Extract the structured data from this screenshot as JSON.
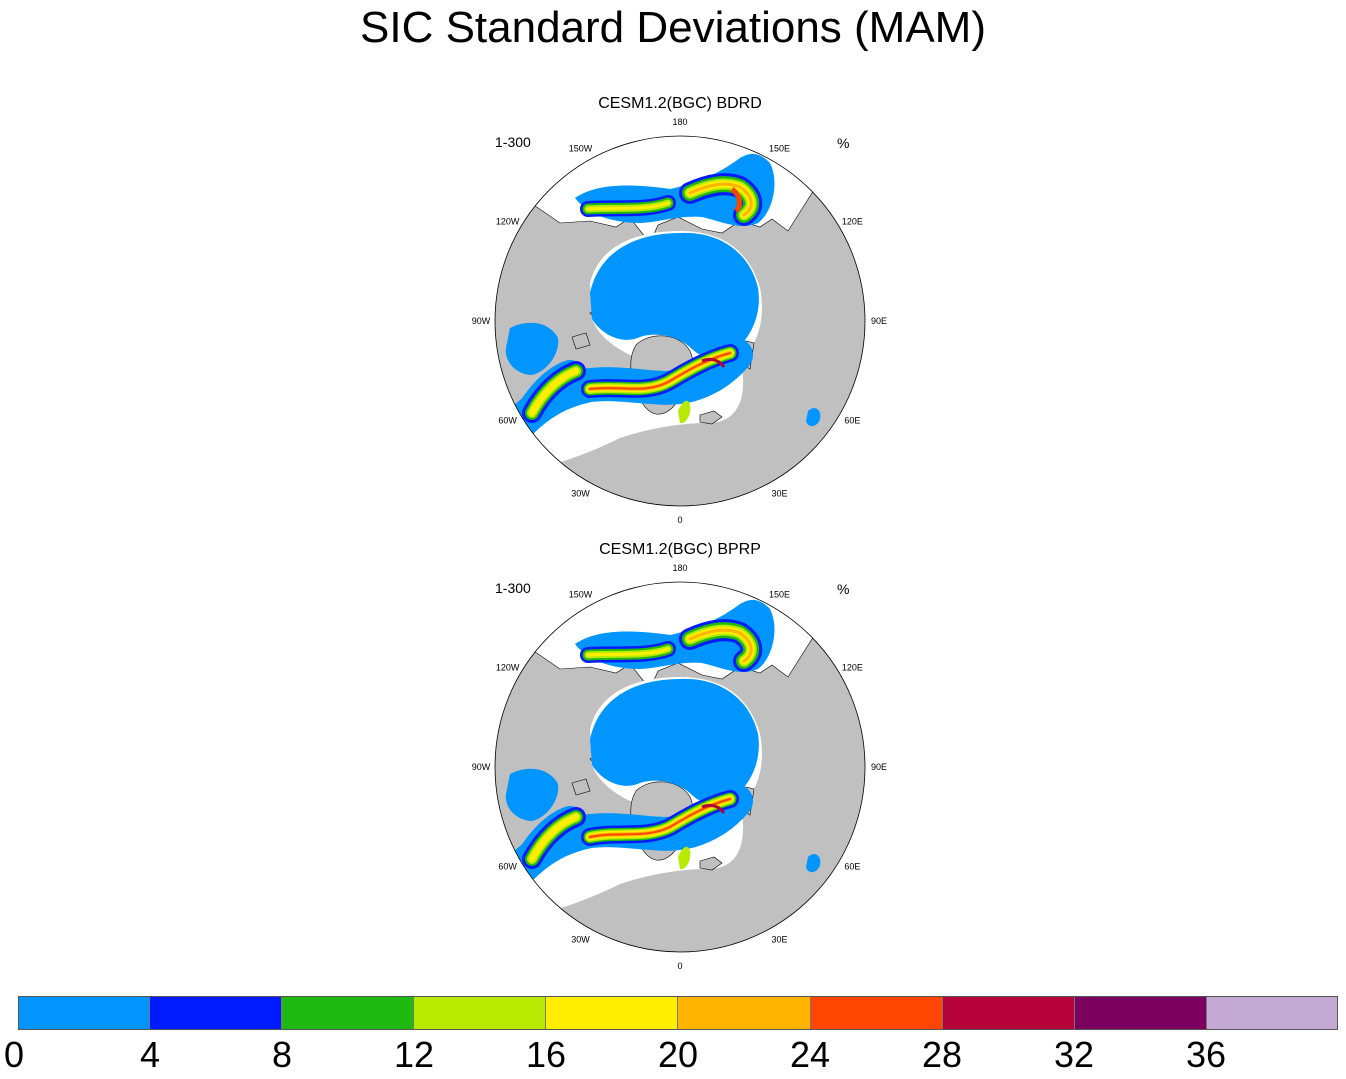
{
  "title": "SIC Standard Deviations (MAM)",
  "chart_data": {
    "type": "heatmap",
    "projection": "north polar stereographic",
    "units": "%",
    "panels": [
      {
        "title": "CESM1.2(BGC) BDRD",
        "left_label": "1-300",
        "right_label": "%",
        "longitude_labels": [
          "180",
          "150E",
          "120E",
          "90E",
          "60E",
          "30E",
          "0",
          "30W",
          "60W",
          "90W",
          "120W",
          "150W"
        ]
      },
      {
        "title": "CESM1.2(BGC) BPRP",
        "left_label": "1-300",
        "right_label": "%",
        "longitude_labels": [
          "180",
          "150E",
          "120E",
          "90E",
          "60E",
          "30E",
          "0",
          "30W",
          "60W",
          "90W",
          "120W",
          "150W"
        ]
      }
    ],
    "colorbar": {
      "levels": [
        "0",
        "4",
        "8",
        "12",
        "16",
        "20",
        "24",
        "28",
        "32",
        "36"
      ],
      "colors": [
        "#0095ff",
        "#001bff",
        "#1fb912",
        "#b8e900",
        "#ffee00",
        "#ffb400",
        "#ff4600",
        "#b5003a",
        "#7c0060",
        "#c5a9d5"
      ]
    }
  },
  "colors": {
    "land": "#c0c0c0",
    "ocean": "#ffffff",
    "outline": "#000000"
  }
}
